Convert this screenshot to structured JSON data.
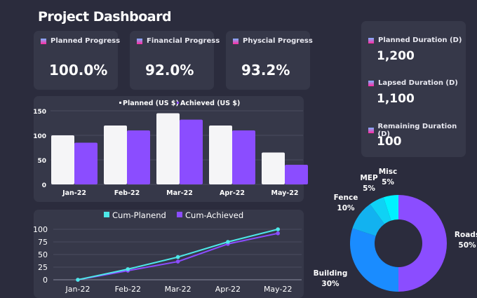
{
  "title": "Project Dashboard",
  "kpis": [
    {
      "label": "Planned Progress",
      "value": "100.0%"
    },
    {
      "label": "Financial Progress",
      "value": "92.0%"
    },
    {
      "label": "Physcial Progress",
      "value": "93.2%"
    }
  ],
  "durations": [
    {
      "label": "Planned Duration (D)",
      "value": "1,200"
    },
    {
      "label": "Lapsed Duration (D)",
      "value": "1,100"
    },
    {
      "label": "Remaining Duration (D)",
      "value": "100"
    }
  ],
  "chart_data": [
    {
      "type": "bar",
      "categories": [
        "Jan-22",
        "Feb-22",
        "Mar-22",
        "Apr-22",
        "May-22"
      ],
      "series": [
        {
          "name": "Planned (US $)",
          "values": [
            100,
            120,
            145,
            120,
            65
          ],
          "color": "#f5f5f7"
        },
        {
          "name": "Achieved (US $)",
          "values": [
            85,
            110,
            132,
            110,
            40
          ],
          "color": "#8b4dff"
        }
      ],
      "ylim": [
        0,
        150
      ],
      "yticks": [
        0,
        50,
        100,
        150
      ],
      "grid": true,
      "legend": "top"
    },
    {
      "type": "line",
      "categories": [
        "Jan-22",
        "Feb-22",
        "Mar-22",
        "Apr-22",
        "May-22"
      ],
      "series": [
        {
          "name": "Cum-Planend",
          "values": [
            0,
            21,
            45,
            75,
            100
          ],
          "color": "#4de8e8"
        },
        {
          "name": "Cum-Achieved",
          "values": [
            0,
            18,
            36,
            71,
            92
          ],
          "color": "#8b4dff"
        }
      ],
      "ylim": [
        0,
        100
      ],
      "yticks": [
        0,
        25,
        50,
        75,
        100
      ],
      "grid": true,
      "legend": "top"
    },
    {
      "type": "pie",
      "donut": true,
      "slices": [
        {
          "label": "Roads",
          "value": 50,
          "text": "50%",
          "color": "#8b4dff"
        },
        {
          "label": "Building",
          "value": 30,
          "text": "30%",
          "color": "#1a8cff"
        },
        {
          "label": "Fence",
          "value": 10,
          "text": "10%",
          "color": "#12b2f0"
        },
        {
          "label": "MEP",
          "value": 5,
          "text": "5%",
          "color": "#0fd2f5"
        },
        {
          "label": "Misc",
          "value": 5,
          "text": "5%",
          "color": "#00f2ff"
        }
      ]
    }
  ]
}
